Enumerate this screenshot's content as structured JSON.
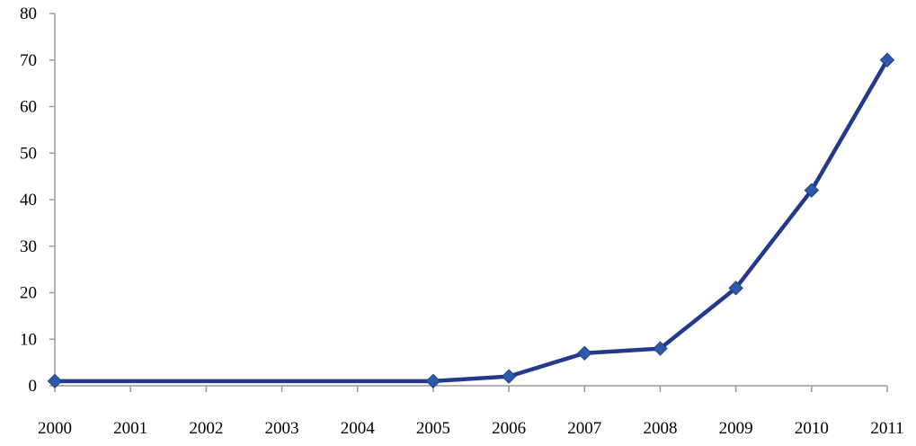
{
  "chart_data": {
    "type": "line",
    "title": "",
    "xlabel": "",
    "ylabel": "",
    "categories": [
      "2000",
      "2001",
      "2002",
      "2003",
      "2004",
      "2005",
      "2006",
      "2007",
      "2008",
      "2009",
      "2010",
      "2011"
    ],
    "x": [
      2000,
      2005,
      2006,
      2007,
      2008,
      2009,
      2010,
      2011
    ],
    "series": [
      {
        "values": [
          1,
          1,
          2,
          7,
          8,
          21,
          42,
          70
        ],
        "color": "#233a8c",
        "marker": "diamond",
        "marker_color": "#2e5aa8"
      }
    ],
    "ylim": [
      0,
      80
    ],
    "yticks": [
      0,
      10,
      20,
      30,
      40,
      50,
      60,
      70,
      80
    ],
    "grid": false,
    "legend": "none"
  }
}
